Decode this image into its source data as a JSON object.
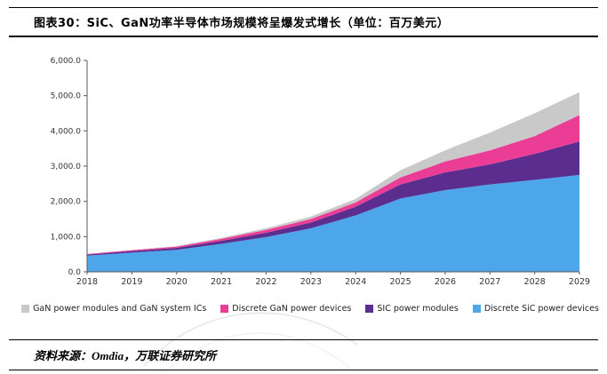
{
  "header": {
    "title": "图表30：SiC、GaN功率半导体市场规模将呈爆发式增长（单位：百万美元）"
  },
  "footer": {
    "source": "资料来源：Omdia，万联证券研究所"
  },
  "chart_data": {
    "type": "area",
    "stacked": true,
    "title": "图表30：SiC、GaN功率半导体市场规模将呈爆发式增长（单位：百万美元）",
    "xlabel": "",
    "ylabel": "",
    "ylim": [
      0,
      6000
    ],
    "ytick_step": 1000,
    "ytick_labels": [
      "0.0",
      "1,000.0",
      "2,000.0",
      "3,000.0",
      "4,000.0",
      "5,000.0",
      "6,000.0"
    ],
    "x": [
      "2018",
      "2019",
      "2020",
      "2021",
      "2022",
      "2023",
      "2024",
      "2025",
      "2026",
      "2027",
      "2028",
      "2029"
    ],
    "series": [
      {
        "name": "Discrete SiC power devices",
        "color": "#4DA6EA",
        "values": [
          460,
          545,
          625,
          795,
          985,
          1235,
          1600,
          2080,
          2320,
          2480,
          2610,
          2750
        ]
      },
      {
        "name": "SIC power modules",
        "color": "#5B2D8F",
        "values": [
          30,
          45,
          55,
          85,
          125,
          165,
          250,
          400,
          500,
          570,
          740,
          950
        ]
      },
      {
        "name": "Discrete GaN power devices",
        "color": "#EC3D96",
        "values": [
          15,
          25,
          35,
          55,
          80,
          100,
          120,
          200,
          310,
          400,
          500,
          750
        ]
      },
      {
        "name": "GaN power modules and GaN system ICs",
        "color": "#C9C9C9",
        "values": [
          10,
          10,
          15,
          30,
          50,
          70,
          100,
          200,
          320,
          500,
          650,
          650
        ]
      }
    ],
    "legend_position": "bottom",
    "grid": false,
    "legend": [
      {
        "label": "GaN power modules and GaN system ICs",
        "color": "#C9C9C9"
      },
      {
        "label": "Discrete GaN power devices",
        "color": "#EC3D96"
      },
      {
        "label": "SIC power modules",
        "color": "#5B2D8F"
      },
      {
        "label": "Discrete SiC power devices",
        "color": "#4DA6EA"
      }
    ]
  }
}
